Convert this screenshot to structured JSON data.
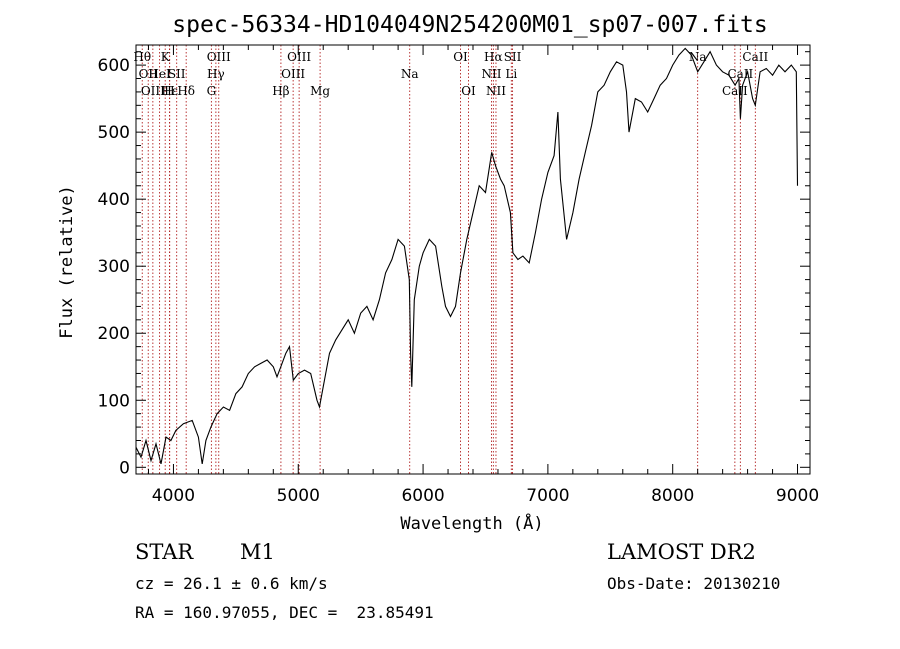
{
  "chart_data": {
    "type": "line",
    "title": "spec-56334-HD104049N254200M01_sp07-007.fits",
    "xlabel": "Wavelength (Å)",
    "ylabel": "Flux (relative)",
    "xlim": [
      3700,
      9100
    ],
    "ylim": [
      -10,
      630
    ],
    "x_ticks": [
      4000,
      5000,
      6000,
      7000,
      8000,
      9000
    ],
    "y_ticks": [
      0,
      100,
      200,
      300,
      400,
      500,
      600
    ],
    "series": [
      {
        "color": "#000000",
        "points": [
          [
            3700,
            30
          ],
          [
            3740,
            15
          ],
          [
            3780,
            40
          ],
          [
            3820,
            10
          ],
          [
            3860,
            35
          ],
          [
            3900,
            5
          ],
          [
            3940,
            45
          ],
          [
            3980,
            40
          ],
          [
            4020,
            55
          ],
          [
            4080,
            65
          ],
          [
            4150,
            70
          ],
          [
            4200,
            45
          ],
          [
            4230,
            5
          ],
          [
            4260,
            40
          ],
          [
            4300,
            60
          ],
          [
            4350,
            80
          ],
          [
            4400,
            90
          ],
          [
            4450,
            85
          ],
          [
            4500,
            110
          ],
          [
            4550,
            120
          ],
          [
            4600,
            140
          ],
          [
            4650,
            150
          ],
          [
            4700,
            155
          ],
          [
            4750,
            160
          ],
          [
            4800,
            150
          ],
          [
            4830,
            135
          ],
          [
            4860,
            150
          ],
          [
            4900,
            170
          ],
          [
            4930,
            180
          ],
          [
            4960,
            130
          ],
          [
            5000,
            140
          ],
          [
            5050,
            145
          ],
          [
            5100,
            140
          ],
          [
            5150,
            100
          ],
          [
            5170,
            90
          ],
          [
            5200,
            120
          ],
          [
            5250,
            170
          ],
          [
            5300,
            190
          ],
          [
            5350,
            205
          ],
          [
            5400,
            220
          ],
          [
            5450,
            200
          ],
          [
            5500,
            230
          ],
          [
            5550,
            240
          ],
          [
            5600,
            220
          ],
          [
            5650,
            250
          ],
          [
            5700,
            290
          ],
          [
            5750,
            310
          ],
          [
            5800,
            340
          ],
          [
            5850,
            330
          ],
          [
            5890,
            280
          ],
          [
            5900,
            170
          ],
          [
            5910,
            120
          ],
          [
            5930,
            250
          ],
          [
            5970,
            300
          ],
          [
            6000,
            320
          ],
          [
            6050,
            340
          ],
          [
            6100,
            330
          ],
          [
            6150,
            270
          ],
          [
            6180,
            240
          ],
          [
            6220,
            225
          ],
          [
            6260,
            240
          ],
          [
            6300,
            290
          ],
          [
            6350,
            340
          ],
          [
            6400,
            380
          ],
          [
            6450,
            420
          ],
          [
            6500,
            410
          ],
          [
            6550,
            470
          ],
          [
            6580,
            450
          ],
          [
            6620,
            430
          ],
          [
            6650,
            420
          ],
          [
            6700,
            380
          ],
          [
            6720,
            320
          ],
          [
            6760,
            310
          ],
          [
            6800,
            315
          ],
          [
            6850,
            305
          ],
          [
            6900,
            350
          ],
          [
            6950,
            400
          ],
          [
            7000,
            440
          ],
          [
            7050,
            465
          ],
          [
            7080,
            530
          ],
          [
            7100,
            430
          ],
          [
            7150,
            340
          ],
          [
            7200,
            380
          ],
          [
            7250,
            430
          ],
          [
            7300,
            470
          ],
          [
            7350,
            510
          ],
          [
            7400,
            560
          ],
          [
            7450,
            570
          ],
          [
            7500,
            590
          ],
          [
            7550,
            605
          ],
          [
            7600,
            600
          ],
          [
            7630,
            560
          ],
          [
            7650,
            500
          ],
          [
            7680,
            530
          ],
          [
            7700,
            550
          ],
          [
            7750,
            545
          ],
          [
            7800,
            530
          ],
          [
            7850,
            550
          ],
          [
            7900,
            570
          ],
          [
            7950,
            580
          ],
          [
            8000,
            600
          ],
          [
            8050,
            615
          ],
          [
            8100,
            625
          ],
          [
            8150,
            615
          ],
          [
            8200,
            590
          ],
          [
            8250,
            605
          ],
          [
            8300,
            620
          ],
          [
            8350,
            600
          ],
          [
            8400,
            590
          ],
          [
            8450,
            585
          ],
          [
            8500,
            570
          ],
          [
            8530,
            580
          ],
          [
            8542,
            520
          ],
          [
            8560,
            570
          ],
          [
            8600,
            590
          ],
          [
            8640,
            550
          ],
          [
            8662,
            540
          ],
          [
            8700,
            590
          ],
          [
            8750,
            595
          ],
          [
            8800,
            585
          ],
          [
            8850,
            600
          ],
          [
            8900,
            590
          ],
          [
            8950,
            600
          ],
          [
            8990,
            590
          ],
          [
            9000,
            420
          ]
        ]
      }
    ],
    "lines": [
      {
        "wave": 3750,
        "label": "Hθ",
        "row": 1
      },
      {
        "wave": 3798,
        "label": "OII",
        "row": 2
      },
      {
        "wave": 3835,
        "label": "OIII",
        "row": 3
      },
      {
        "wave": 3889,
        "label": "HeI",
        "row": 2
      },
      {
        "wave": 3934,
        "label": "K",
        "row": 1
      },
      {
        "wave": 3968,
        "label": "H",
        "row": 3
      },
      {
        "wave": 3970,
        "label": "Hε",
        "row": 3
      },
      {
        "wave": 4026,
        "label": "SII",
        "row": 2
      },
      {
        "wave": 4102,
        "label": "Hδ",
        "row": 3
      },
      {
        "wave": 4304,
        "label": "G",
        "row": 3
      },
      {
        "wave": 4340,
        "label": "Hγ",
        "row": 2
      },
      {
        "wave": 4363,
        "label": "OIII",
        "row": 1
      },
      {
        "wave": 4861,
        "label": "Hβ",
        "row": 3
      },
      {
        "wave": 4959,
        "label": "OIII",
        "row": 2
      },
      {
        "wave": 5007,
        "label": "OIII",
        "row": 1
      },
      {
        "wave": 5175,
        "label": "Mg",
        "row": 3
      },
      {
        "wave": 5893,
        "label": "Na",
        "row": 2
      },
      {
        "wave": 6300,
        "label": "OI",
        "row": 1
      },
      {
        "wave": 6364,
        "label": "OI",
        "row": 3
      },
      {
        "wave": 6548,
        "label": "NII",
        "row": 2
      },
      {
        "wave": 6563,
        "label": "Hα",
        "row": 1
      },
      {
        "wave": 6584,
        "label": "NII",
        "row": 3
      },
      {
        "wave": 6707,
        "label": "Li",
        "row": 2
      },
      {
        "wave": 6717,
        "label": "SII",
        "row": 1
      },
      {
        "wave": 8200,
        "label": "Na",
        "row": 1
      },
      {
        "wave": 8498,
        "label": "CaII",
        "row": 3
      },
      {
        "wave": 8542,
        "label": "CaII",
        "row": 2
      },
      {
        "wave": 8662,
        "label": "CaII",
        "row": 1
      }
    ],
    "line_color": "#b22222",
    "grid": false,
    "legend": "none"
  },
  "info": {
    "type_label": "STAR",
    "subclass": "M1",
    "survey": "LAMOST DR2",
    "cz": "cz = 26.1 ± 0.6 km/s",
    "obs_date": "Obs-Date: 20130210",
    "coords": "RA = 160.97055, DEC =  23.85491"
  }
}
